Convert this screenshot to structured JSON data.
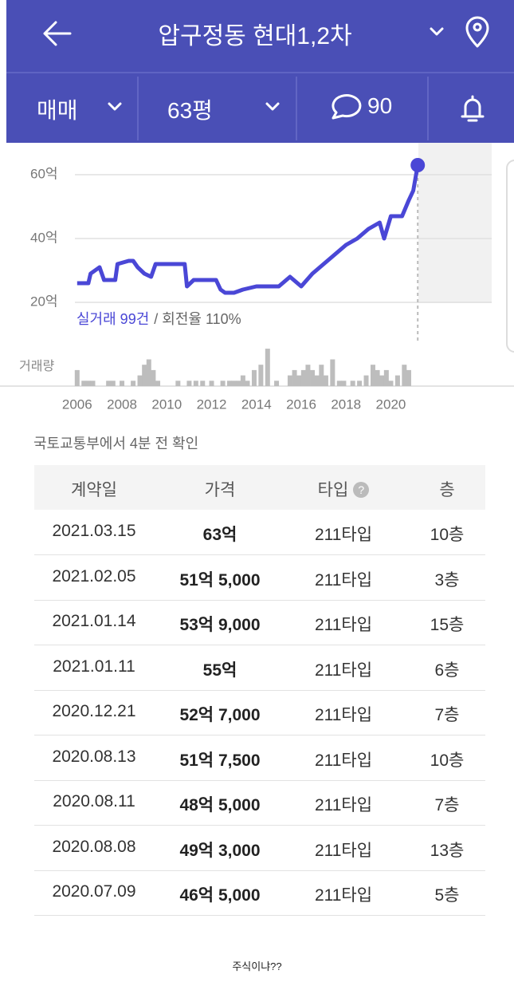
{
  "header": {
    "title": "압구정동 현대1,2차",
    "trade_type": "매매",
    "size": "63평",
    "comments": "90"
  },
  "chart_data": {
    "type": "line",
    "x": [
      2006.0,
      2006.5,
      2006.6,
      2007.0,
      2007.2,
      2007.7,
      2007.8,
      2008.3,
      2008.5,
      2008.7,
      2009.0,
      2009.3,
      2009.5,
      2010.8,
      2010.9,
      2011.2,
      2012.2,
      2012.4,
      2012.6,
      2013.0,
      2013.4,
      2014.0,
      2015.0,
      2015.5,
      2016.0,
      2016.5,
      2017.0,
      2017.5,
      2018.0,
      2018.5,
      2019.0,
      2019.5,
      2019.7,
      2020.0,
      2020.5,
      2020.8,
      2021.0,
      2021.2
    ],
    "values": [
      26,
      26,
      29,
      31,
      27,
      27,
      32,
      33,
      33,
      31,
      29,
      28,
      32,
      32,
      25,
      27,
      27,
      24,
      23,
      23,
      24,
      25,
      25,
      28,
      25,
      29,
      32,
      35,
      38,
      40,
      43,
      45,
      40,
      47,
      47,
      52,
      55,
      63
    ],
    "color": "#4a47d6",
    "xlim": [
      2005.9,
      2024.5
    ],
    "xticks": [
      2006,
      2008,
      2010,
      2012,
      2014,
      2016,
      2018,
      2020
    ],
    "ylim": [
      20,
      67
    ],
    "yticks": [
      {
        "value": 20,
        "label": "20억"
      },
      {
        "value": 40,
        "label": "40억"
      },
      {
        "value": 60,
        "label": "60억"
      }
    ],
    "grid": true,
    "summary_count": "실거래 99건",
    "summary_rate": "/ 회전율 110%",
    "volume_label": "거래량",
    "volume": {
      "color": "#bdbdbd",
      "x": [
        2006.0,
        2006.3,
        2006.5,
        2006.7,
        2007.4,
        2007.6,
        2008.0,
        2008.5,
        2008.8,
        2009.0,
        2009.2,
        2009.4,
        2009.6,
        2010.5,
        2011.0,
        2011.3,
        2011.6,
        2012.0,
        2012.5,
        2012.8,
        2013.0,
        2013.2,
        2013.4,
        2013.6,
        2013.9,
        2014.2,
        2014.5,
        2014.9,
        2015.5,
        2015.7,
        2015.9,
        2016.1,
        2016.3,
        2016.5,
        2016.7,
        2016.9,
        2017.1,
        2017.4,
        2017.7,
        2017.9,
        2018.3,
        2018.6,
        2018.9,
        2019.2,
        2019.4,
        2019.6,
        2019.8,
        2020.0,
        2020.3,
        2020.6,
        2020.8
      ],
      "values": [
        3,
        1,
        1,
        1,
        1,
        1,
        1,
        1,
        2,
        4,
        5,
        3,
        1,
        1,
        1,
        1,
        1,
        1,
        1,
        1,
        1,
        1,
        2,
        1,
        3,
        4,
        7,
        1,
        2,
        3,
        2,
        3,
        4,
        3,
        2,
        4,
        2,
        5,
        1,
        1,
        1,
        1,
        2,
        4,
        3,
        2,
        3,
        1,
        2,
        4,
        3
      ]
    }
  },
  "source": "국토교통부에서 4분 전 확인",
  "table": {
    "columns": [
      "계약일",
      "가격",
      "타입",
      "층"
    ],
    "rows": [
      [
        "2021.03.15",
        "63억",
        "211타입",
        "10층"
      ],
      [
        "2021.02.05",
        "51억 5,000",
        "211타입",
        "3층"
      ],
      [
        "2021.01.14",
        "53억 9,000",
        "211타입",
        "15층"
      ],
      [
        "2021.01.11",
        "55억",
        "211타입",
        "6층"
      ],
      [
        "2020.12.21",
        "52억 7,000",
        "211타입",
        "7층"
      ],
      [
        "2020.08.13",
        "51억 7,500",
        "211타입",
        "10층"
      ],
      [
        "2020.08.11",
        "48억 5,000",
        "211타입",
        "7층"
      ],
      [
        "2020.08.08",
        "49억 3,000",
        "211타입",
        "13층"
      ],
      [
        "2020.07.09",
        "46억 5,000",
        "211타입",
        "5층"
      ]
    ]
  },
  "caption": "주식이냐??"
}
